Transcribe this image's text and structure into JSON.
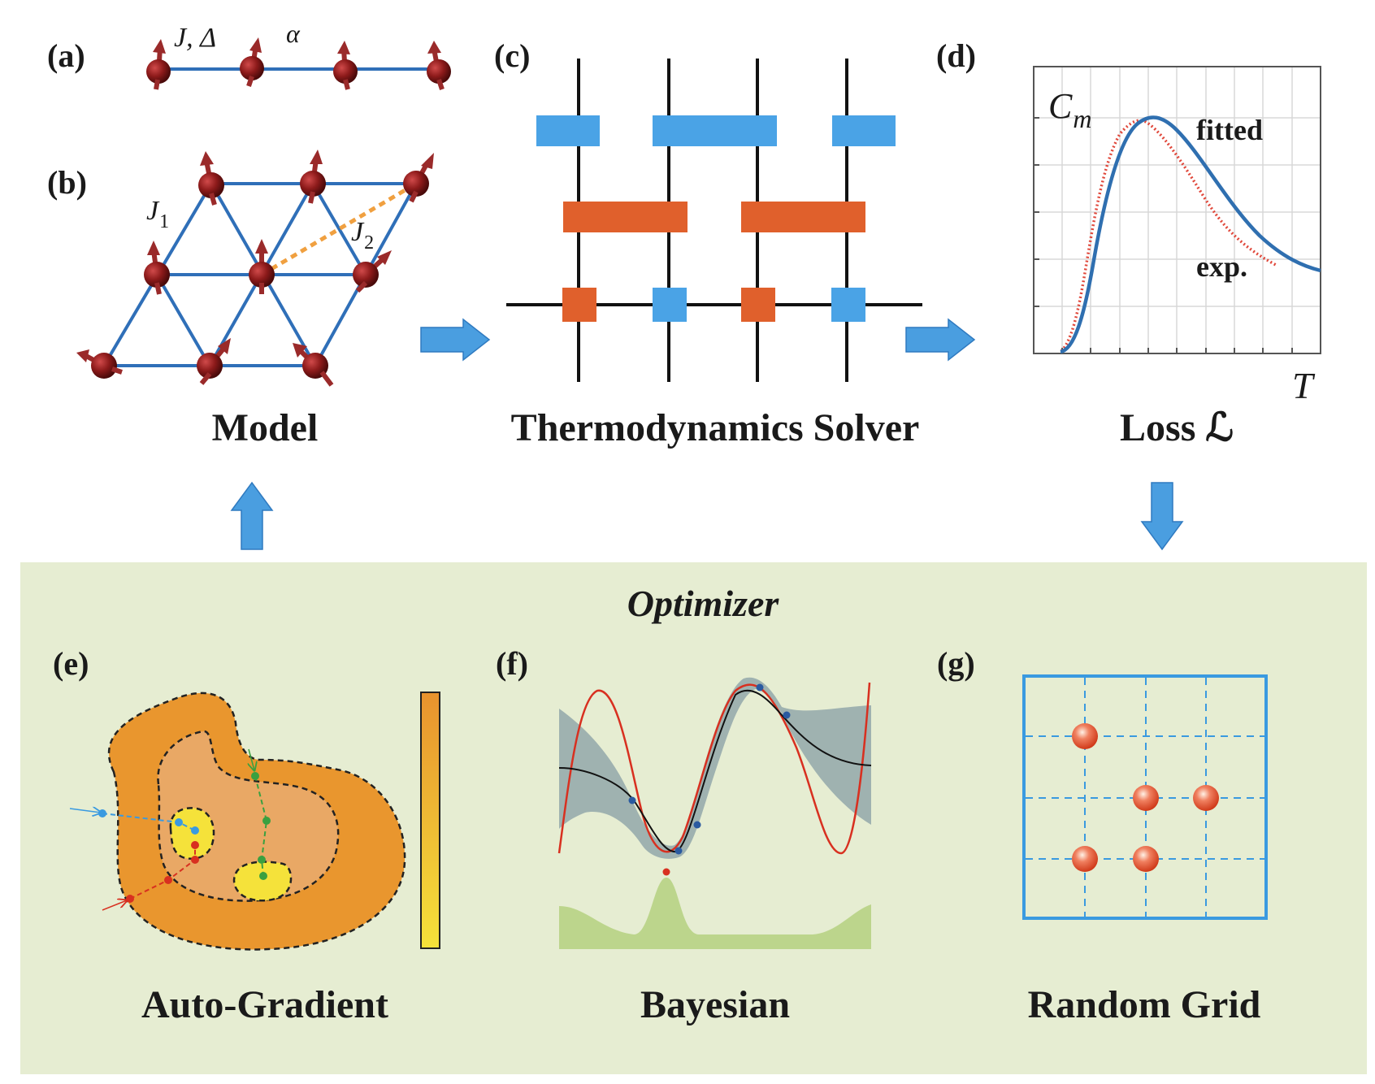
{
  "panels": {
    "a": {
      "label": "(a)",
      "param1": "J, Δ",
      "param2": "α"
    },
    "b": {
      "label": "(b)",
      "j1": "J",
      "j1_sub": "1",
      "j2": "J",
      "j2_sub": "2"
    },
    "c": {
      "label": "(c)"
    },
    "d": {
      "label": "(d)",
      "ylabel": "C",
      "ylabel_sub": "m",
      "xlabel": "T",
      "fitted": "fitted",
      "exp": "exp."
    },
    "e": {
      "label": "(e)"
    },
    "f": {
      "label": "(f)"
    },
    "g": {
      "label": "(g)"
    }
  },
  "captions": {
    "model": "Model",
    "solver": "Thermodynamics Solver",
    "loss": "Loss ℒ",
    "optimizer": "Optimizer",
    "auto_gradient": "Auto-Gradient",
    "bayesian": "Bayesian",
    "random_grid": "Random Grid"
  },
  "colors": {
    "optimizer_bg": "#e6edd2",
    "arrow": "#4a9ee0",
    "bond": "#2f6fb8",
    "spin": "#8a1a1a",
    "solver_blue": "#4aa3e6",
    "solver_orange": "#e0602c",
    "fitted": "#2f6fb0",
    "exp": "#e0473a",
    "j2_bond": "#f0a040"
  },
  "icons": {
    "flow_arrow": "right-arrow-icon",
    "up_arrow": "up-arrow-icon",
    "down_arrow": "down-arrow-icon",
    "spin": "spin-sphere-icon"
  }
}
